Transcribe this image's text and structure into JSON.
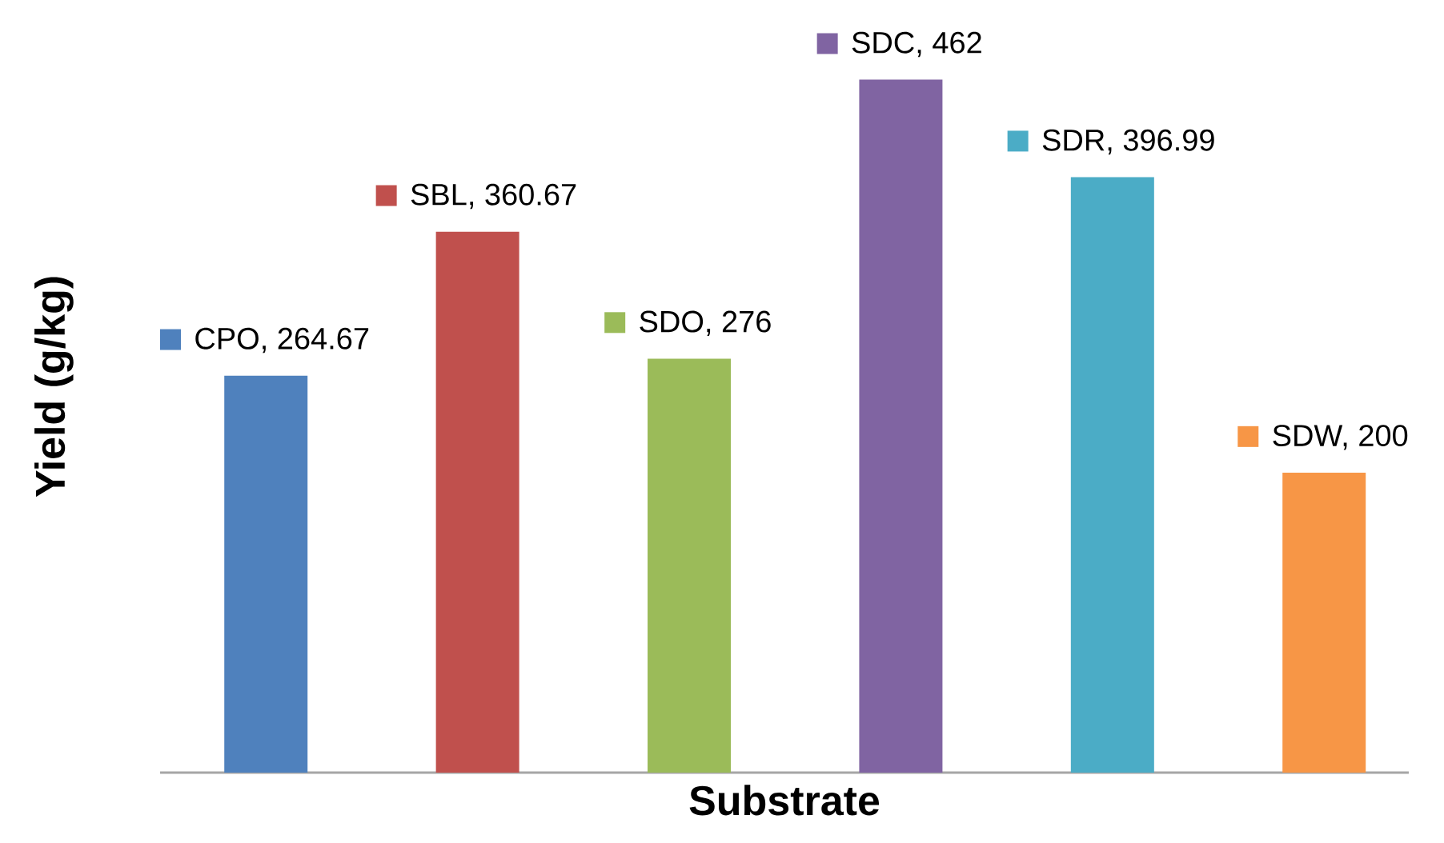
{
  "chart_data": {
    "type": "bar",
    "xlabel": "Substrate",
    "ylabel": "Yield (g/kg)",
    "categories": [
      null,
      null,
      null,
      null,
      null,
      null
    ],
    "values": [
      264.67,
      360.67,
      276,
      462,
      396.99,
      200
    ],
    "colors": [
      "#4f81bd",
      "#c0504d",
      "#9bbb59",
      "#8064a2",
      "#4bacc6",
      "#f79646"
    ],
    "value_labels": [
      "CPO, 264.67",
      "SBL, 360.67",
      "SDO, 276",
      "SDC, 462",
      "SDR, 396.99",
      "SDW, 200"
    ]
  }
}
